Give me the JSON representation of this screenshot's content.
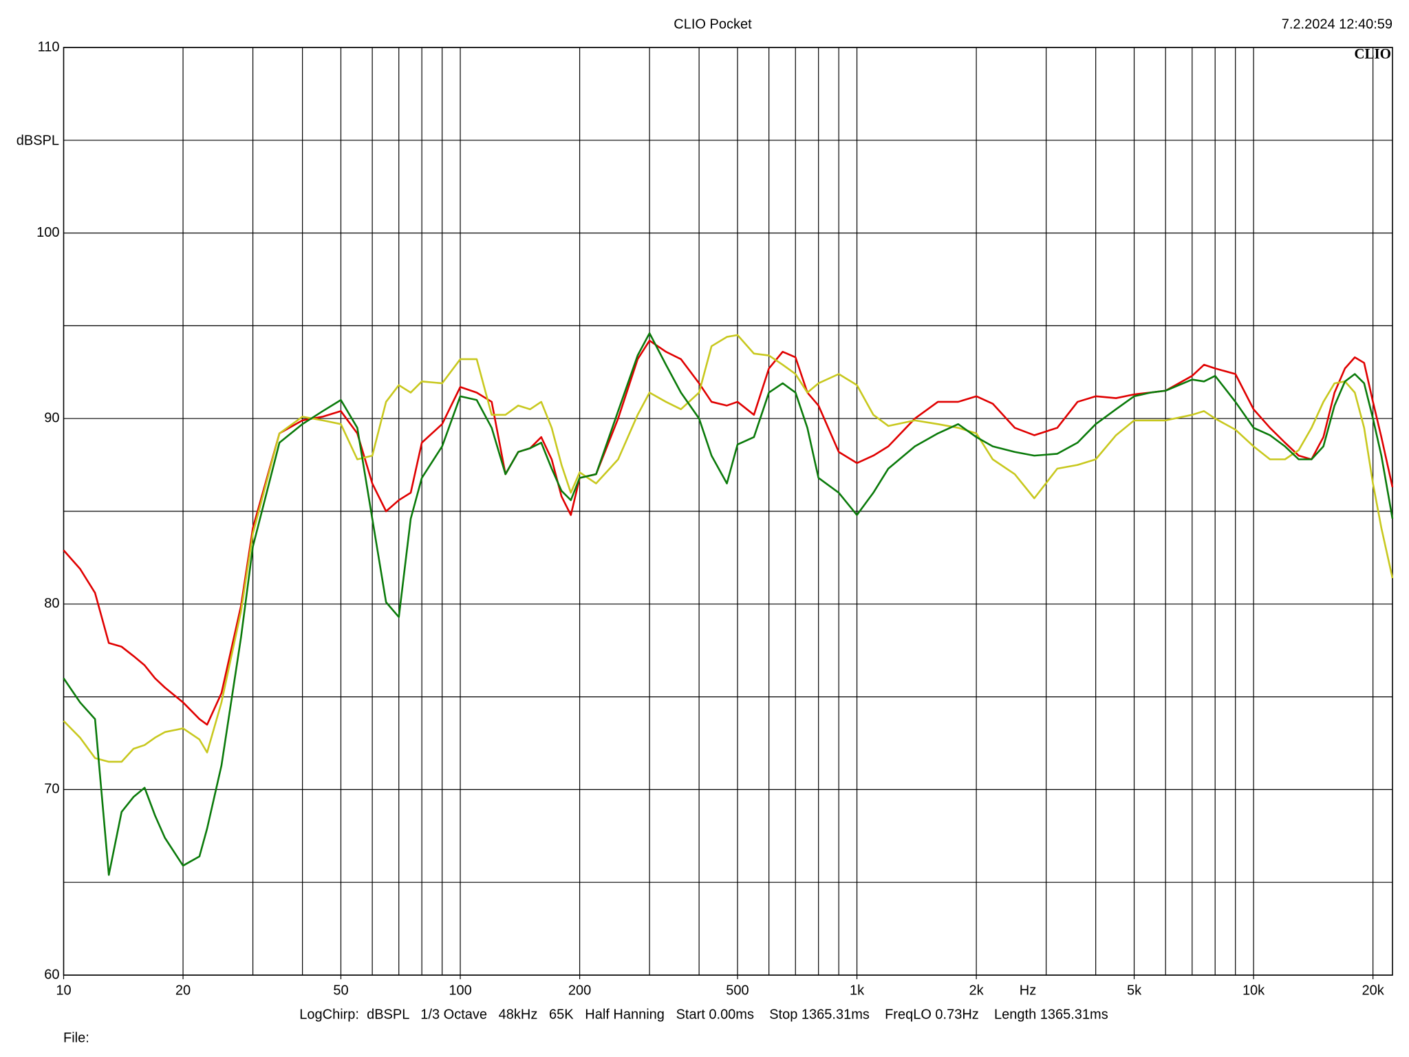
{
  "chart_data": {
    "type": "line",
    "title": "CLIO Pocket",
    "timestamp": "7.2.2024 12:40:59",
    "logo": "CLIO",
    "y_label": "dBSPL",
    "x_label": "Hz",
    "footer": "LogChirp:  dBSPL   1/3 Octave   48kHz   65K   Half Hanning   Start 0.00ms    Stop 1365.31ms    FreqLO 0.73Hz    Length 1365.31ms",
    "file_label": "File:",
    "log_x": true,
    "grid": true,
    "xlim": [
      10,
      22400
    ],
    "ylim": [
      60,
      110
    ],
    "xticks": [
      10,
      20,
      50,
      100,
      200,
      500,
      {
        "value": 1000,
        "label": "1k"
      },
      {
        "value": 2000,
        "label": "2k"
      },
      {
        "value": 5000,
        "label": "5k"
      },
      {
        "value": 10000,
        "label": "10k"
      },
      {
        "value": 20000,
        "label": "20k"
      }
    ],
    "xgrid": [
      20,
      30,
      40,
      50,
      60,
      70,
      80,
      90,
      100,
      200,
      300,
      400,
      500,
      600,
      700,
      800,
      900,
      1000,
      2000,
      3000,
      4000,
      5000,
      6000,
      7000,
      8000,
      9000,
      10000,
      20000
    ],
    "yticks": [
      60,
      70,
      80,
      90,
      100,
      110
    ],
    "ygrid": [
      65,
      75,
      85,
      95,
      105
    ],
    "x": [
      10,
      11,
      12,
      13,
      14,
      15,
      16,
      17,
      18,
      20,
      22,
      23,
      25,
      28,
      30,
      35,
      40,
      45,
      50,
      55,
      60,
      65,
      70,
      75,
      80,
      90,
      100,
      110,
      120,
      130,
      140,
      150,
      160,
      170,
      180,
      190,
      200,
      220,
      250,
      280,
      300,
      330,
      360,
      400,
      430,
      470,
      500,
      550,
      600,
      650,
      700,
      750,
      800,
      900,
      1000,
      1100,
      1200,
      1400,
      1600,
      1800,
      2000,
      2200,
      2500,
      2800,
      3200,
      3600,
      4000,
      4500,
      5000,
      5500,
      6000,
      7000,
      7500,
      8000,
      9000,
      10000,
      11000,
      12000,
      13000,
      14000,
      15000,
      16000,
      17000,
      18000,
      19000,
      20000,
      21000,
      22400
    ],
    "series": [
      {
        "color": "#e00000",
        "values": [
          82.9,
          81.9,
          80.6,
          77.9,
          77.7,
          77.2,
          76.7,
          76.0,
          75.5,
          74.7,
          73.8,
          73.5,
          75.2,
          79.9,
          84.1,
          89.2,
          89.9,
          90.1,
          90.4,
          89.2,
          86.5,
          85.0,
          85.6,
          86.0,
          88.7,
          89.7,
          91.7,
          91.4,
          90.9,
          87.0,
          88.2,
          88.4,
          89.0,
          87.8,
          85.8,
          84.8,
          86.8,
          87.0,
          90.0,
          93.2,
          94.2,
          93.6,
          93.2,
          91.9,
          90.9,
          90.7,
          90.9,
          90.2,
          92.7,
          93.6,
          93.3,
          91.4,
          90.7,
          88.2,
          87.6,
          88.0,
          88.5,
          90.0,
          90.9,
          90.9,
          91.2,
          90.8,
          89.5,
          89.1,
          89.5,
          90.9,
          91.2,
          91.1,
          91.3,
          91.4,
          91.5,
          92.3,
          92.9,
          92.7,
          92.4,
          90.5,
          89.5,
          88.7,
          88.0,
          87.8,
          89.0,
          91.4,
          92.7,
          93.3,
          93.0,
          90.9,
          89.0,
          86.3
        ]
      },
      {
        "color": "#c8c81e",
        "values": [
          73.7,
          72.8,
          71.7,
          71.5,
          71.5,
          72.2,
          72.4,
          72.8,
          73.1,
          73.3,
          72.7,
          72.0,
          74.7,
          79.6,
          83.8,
          89.2,
          90.1,
          89.9,
          89.7,
          87.8,
          88.0,
          90.9,
          91.8,
          91.4,
          92.0,
          91.9,
          93.2,
          93.2,
          90.2,
          90.2,
          90.7,
          90.5,
          90.9,
          89.5,
          87.5,
          86.0,
          87.1,
          86.5,
          87.8,
          90.2,
          91.4,
          90.9,
          90.5,
          91.4,
          93.9,
          94.4,
          94.5,
          93.5,
          93.4,
          92.9,
          92.4,
          91.4,
          91.9,
          92.4,
          91.8,
          90.2,
          89.6,
          89.9,
          89.7,
          89.5,
          89.2,
          87.8,
          87.0,
          85.7,
          87.3,
          87.5,
          87.8,
          89.1,
          89.9,
          89.9,
          89.9,
          90.2,
          90.4,
          90.0,
          89.4,
          88.5,
          87.8,
          87.8,
          88.3,
          89.5,
          90.9,
          91.9,
          92.0,
          91.4,
          89.5,
          86.5,
          84.1,
          81.4
        ]
      },
      {
        "color": "#0a7a0a",
        "values": [
          76.0,
          74.7,
          73.8,
          65.4,
          68.8,
          69.6,
          70.1,
          68.6,
          67.4,
          65.9,
          66.4,
          67.9,
          71.3,
          78.2,
          83.1,
          88.7,
          89.7,
          90.4,
          91.0,
          89.5,
          84.6,
          80.1,
          79.3,
          84.6,
          86.8,
          88.5,
          91.2,
          91.0,
          89.5,
          87.0,
          88.2,
          88.4,
          88.7,
          87.3,
          86.1,
          85.6,
          86.8,
          87.0,
          90.4,
          93.4,
          94.6,
          92.9,
          91.4,
          90.0,
          88.0,
          86.5,
          88.6,
          89.0,
          91.4,
          91.9,
          91.4,
          89.5,
          86.8,
          86.0,
          84.8,
          86.0,
          87.3,
          88.5,
          89.2,
          89.7,
          89.0,
          88.5,
          88.2,
          88.0,
          88.1,
          88.7,
          89.7,
          90.5,
          91.2,
          91.4,
          91.5,
          92.1,
          92.0,
          92.3,
          90.9,
          89.5,
          89.1,
          88.5,
          87.8,
          87.8,
          88.5,
          90.7,
          92.0,
          92.4,
          91.9,
          90.0,
          88.0,
          84.6
        ]
      }
    ]
  }
}
